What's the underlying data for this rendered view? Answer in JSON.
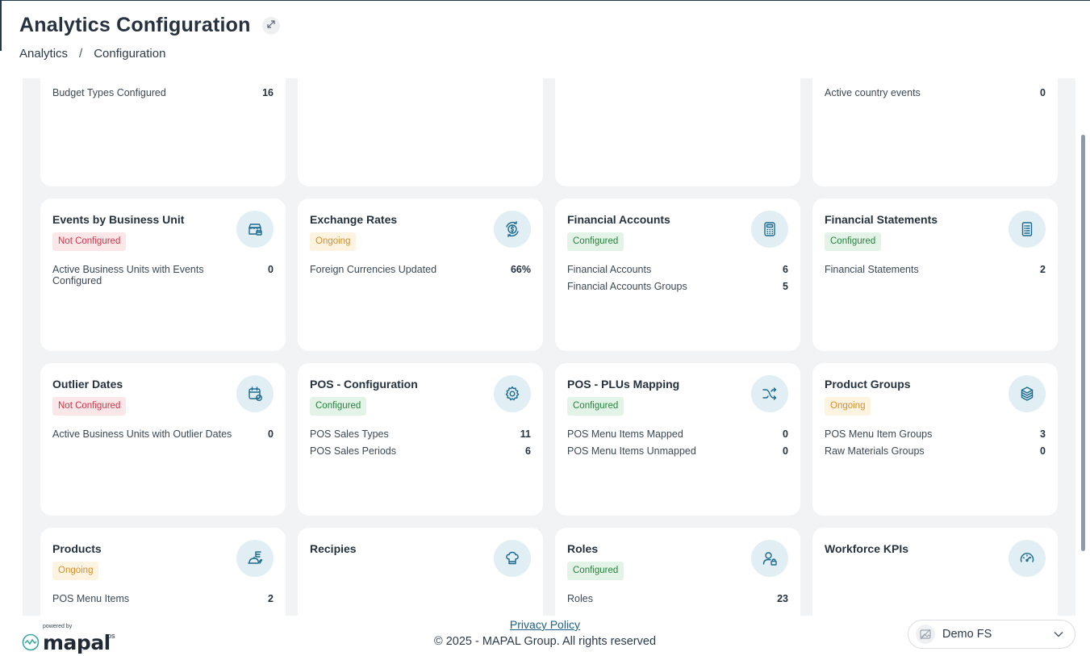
{
  "header": {
    "title": "Analytics Configuration",
    "breadcrumb": [
      "Analytics",
      "/",
      "Configuration"
    ]
  },
  "cards": [
    {
      "title": "",
      "status": "",
      "status_type": "none",
      "icon": "none",
      "stats": [
        {
          "label": "Budget Types Configured",
          "value": "16"
        }
      ]
    },
    {
      "title": "",
      "status": "",
      "status_type": "none",
      "icon": "none",
      "stats": []
    },
    {
      "title": "",
      "status": "",
      "status_type": "none",
      "icon": "none",
      "stats": []
    },
    {
      "title": "",
      "status": "",
      "status_type": "none",
      "icon": "none",
      "stats": [
        {
          "label": "Active country events",
          "value": "0"
        }
      ]
    },
    {
      "title": "Events by Business Unit",
      "status": "Not Configured",
      "status_type": "not-configured",
      "icon": "store-calendar-icon",
      "stats": [
        {
          "label": "Active Business Units with Events Configured",
          "value": "0"
        }
      ]
    },
    {
      "title": "Exchange Rates",
      "status": "Ongoing",
      "status_type": "ongoing",
      "icon": "currency-exchange-icon",
      "stats": [
        {
          "label": "Foreign Currencies Updated",
          "value": "66%"
        }
      ]
    },
    {
      "title": "Financial Accounts",
      "status": "Configured",
      "status_type": "configured",
      "icon": "calculator-icon",
      "stats": [
        {
          "label": "Financial Accounts",
          "value": "6"
        },
        {
          "label": "Financial Accounts Groups",
          "value": "5"
        }
      ]
    },
    {
      "title": "Financial Statements",
      "status": "Configured",
      "status_type": "configured",
      "icon": "statement-document-icon",
      "stats": [
        {
          "label": "Financial Statements",
          "value": "2"
        }
      ]
    },
    {
      "title": "Outlier Dates",
      "status": "Not Configured",
      "status_type": "not-configured",
      "icon": "calendar-check-icon",
      "stats": [
        {
          "label": "Active Business Units with Outlier Dates",
          "value": "0"
        }
      ]
    },
    {
      "title": "POS - Configuration",
      "status": "Configured",
      "status_type": "configured",
      "icon": "gear-icon",
      "stats": [
        {
          "label": "POS Sales Types",
          "value": "11"
        },
        {
          "label": "POS Sales Periods",
          "value": "6"
        }
      ]
    },
    {
      "title": "POS - PLUs Mapping",
      "status": "Configured",
      "status_type": "configured",
      "icon": "shuffle-icon",
      "stats": [
        {
          "label": "POS Menu Items Mapped",
          "value": "0"
        },
        {
          "label": "POS Menu Items Unmapped",
          "value": "0"
        }
      ]
    },
    {
      "title": "Product Groups",
      "status": "Ongoing",
      "status_type": "ongoing",
      "icon": "stacked-boxes-icon",
      "stats": [
        {
          "label": "POS Menu Item Groups",
          "value": "3"
        },
        {
          "label": "Raw Materials Groups",
          "value": "0"
        }
      ]
    },
    {
      "title": "Products",
      "status": "Ongoing",
      "status_type": "ongoing",
      "icon": "food-tray-icon",
      "stats": [
        {
          "label": "POS Menu Items",
          "value": "2"
        }
      ]
    },
    {
      "title": "Recipies",
      "status": "",
      "status_type": "none",
      "icon": "chef-hat-icon",
      "stats": []
    },
    {
      "title": "Roles",
      "status": "Configured",
      "status_type": "configured",
      "icon": "user-lock-icon",
      "stats": [
        {
          "label": "Roles",
          "value": "23"
        }
      ]
    },
    {
      "title": "Workforce KPIs",
      "status": "",
      "status_type": "none",
      "icon": "speedometer-icon",
      "stats": []
    }
  ],
  "footer": {
    "powered_by": "powered by",
    "brand": "mapal",
    "brand_suffix": "os",
    "privacy_link": "Privacy Policy",
    "copyright": "© 2025 - MAPAL Group. All rights reserved",
    "site_selector": "Demo FS"
  },
  "colors": {
    "configured_bg": "#e3f3e7",
    "configured_text": "#27823f",
    "not_configured_bg": "#fbe6e8",
    "not_configured_text": "#d43246",
    "ongoing_bg": "#fdf3e1",
    "ongoing_text": "#d5902a",
    "icon_circle": "#e1eef4",
    "icon_stroke": "#1d6a8f",
    "page_bg": "#f2f3f5"
  }
}
